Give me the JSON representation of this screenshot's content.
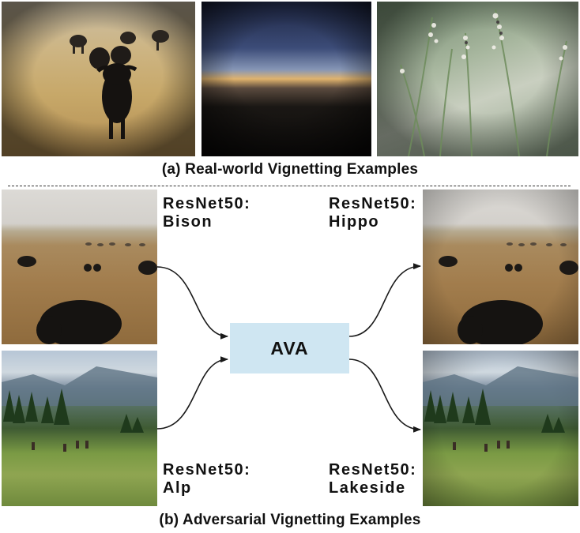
{
  "captions": {
    "real_world": "(a) Real-world Vignetting Examples",
    "adversarial": "(b) Adversarial Vignetting Examples"
  },
  "method": {
    "label": "AVA",
    "box_color": "#cfe6f2"
  },
  "predictions": {
    "bison_original": {
      "model": "ResNet50:",
      "label": "Bison"
    },
    "bison_adversarial": {
      "model": "ResNet50:",
      "label": "Hippo"
    },
    "alp_original": {
      "model": "ResNet50:",
      "label": "Alp"
    },
    "alp_adversarial": {
      "model": "ResNet50:",
      "label": "Lakeside"
    }
  }
}
